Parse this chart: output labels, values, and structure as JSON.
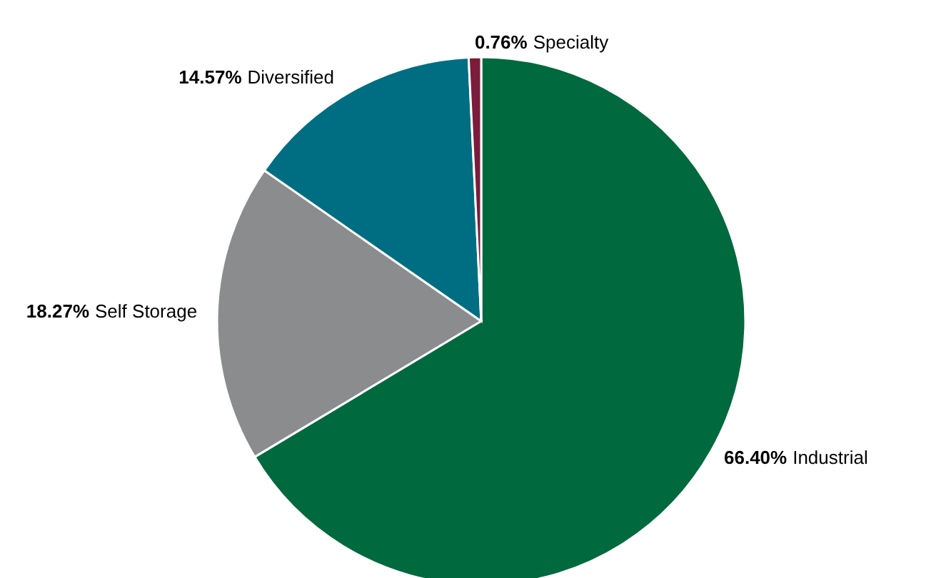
{
  "chart_data": {
    "type": "pie",
    "categories": [
      "Industrial",
      "Self Storage",
      "Diversified",
      "Specialty"
    ],
    "values": [
      66.4,
      18.27,
      14.57,
      0.76
    ],
    "value_labels": [
      "66.40%",
      "18.27%",
      "14.57%",
      "0.76%"
    ],
    "colors": [
      "#00693e",
      "#8a8c8e",
      "#006e82",
      "#7b1c3c"
    ]
  }
}
